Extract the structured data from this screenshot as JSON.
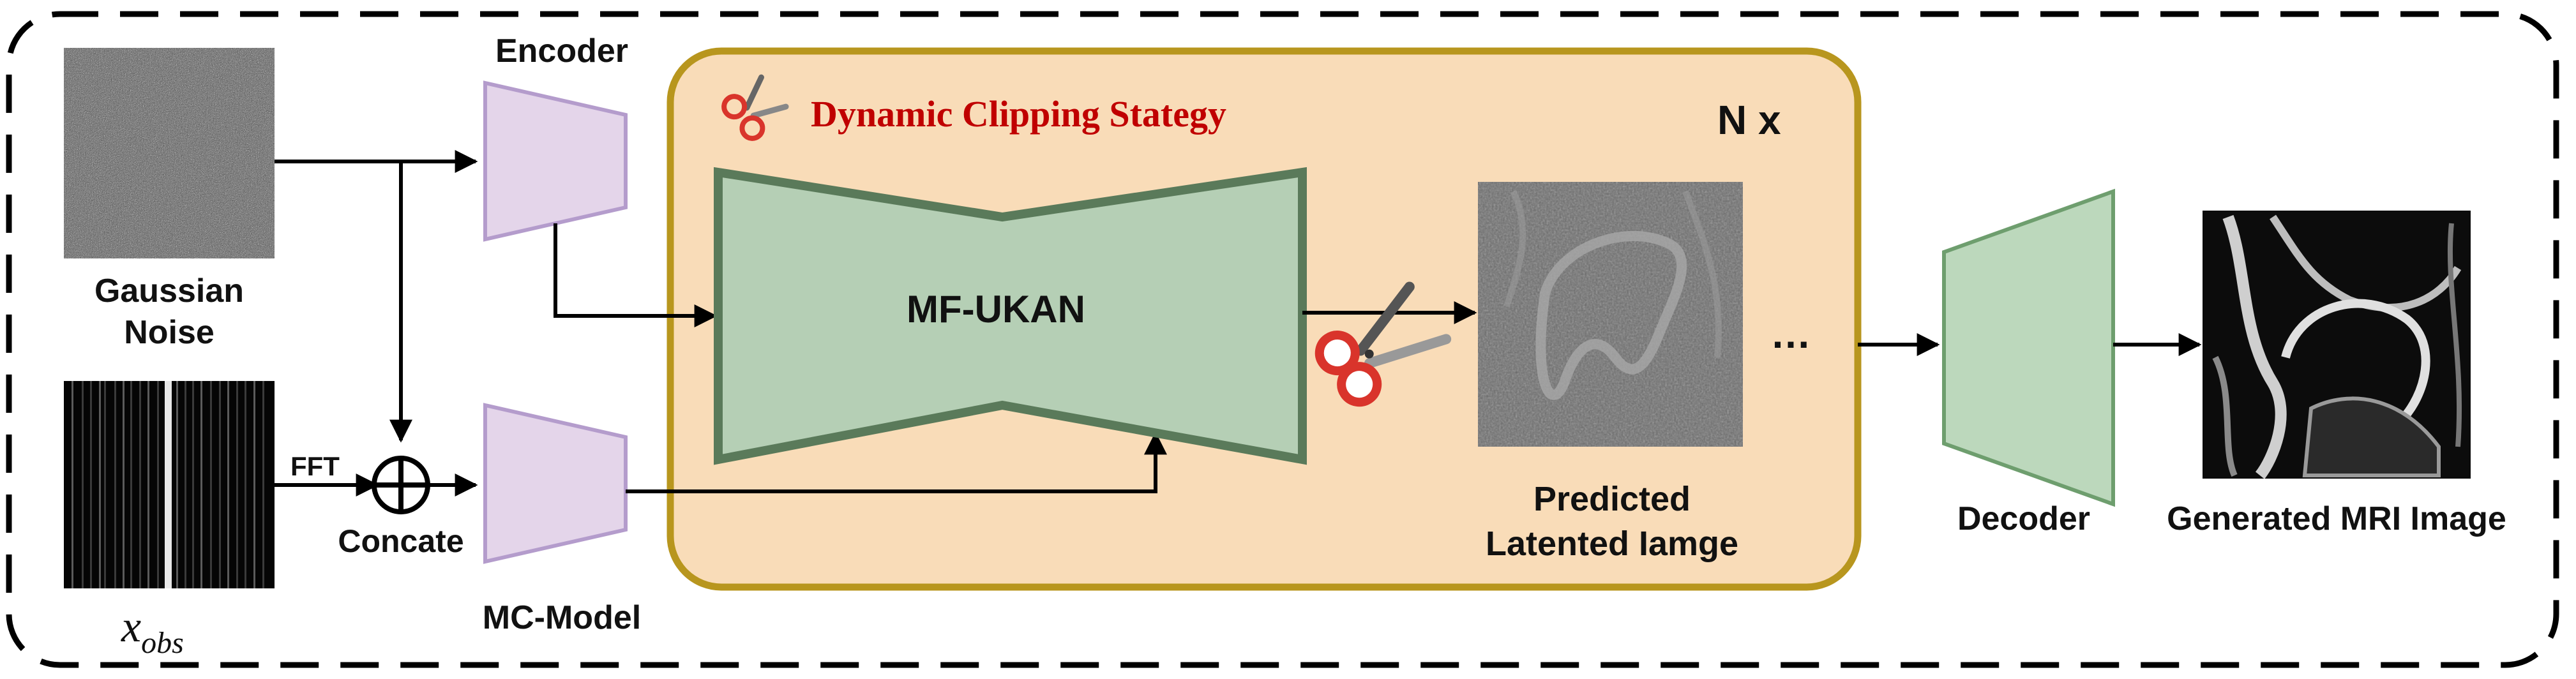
{
  "labels": {
    "gaussian_noise": [
      "Gaussian",
      "Noise"
    ],
    "x_obs": "x",
    "x_obs_sub": "obs",
    "fft": "FFT",
    "concate": "Concate",
    "encoder": "Encoder",
    "mc_model": "MC-Model",
    "clipping_title": "Dynamic Clipping Stategy",
    "repeat": "N x",
    "mf_ukan": "MF-UKAN",
    "predicted": [
      "Predicted",
      "Latented Iamge"
    ],
    "ellipsis": "…",
    "decoder": "Decoder",
    "generated": "Generated MRI Image"
  },
  "colors": {
    "encoder_fill": "#e4d5ea",
    "encoder_stroke": "#b49ccc",
    "ukan_fill": "#b5cfb5",
    "ukan_stroke": "#5a7a5a",
    "decoder_fill": "#bcd8bc",
    "decoder_stroke": "#6e9e6e",
    "panel_fill": "#f9dcb8",
    "panel_stroke": "#b8961e",
    "clip_title": "#c00000",
    "scissors_red": "#d9342b"
  },
  "icons": [
    "scissors-icon",
    "concat-circle-icon"
  ]
}
